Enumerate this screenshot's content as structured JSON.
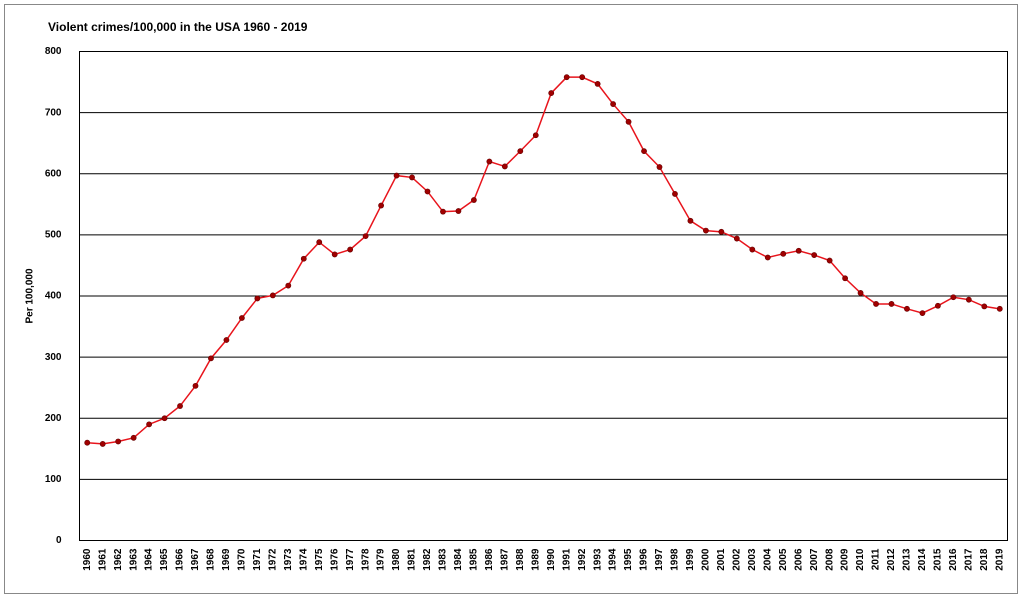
{
  "chart_data": {
    "type": "line",
    "title": "Violent crimes/100,000 in the USA 1960 - 2019",
    "y_label": "Per 100,000",
    "categories": [
      "1960",
      "1961",
      "1962",
      "1963",
      "1964",
      "1965",
      "1966",
      "1967",
      "1968",
      "1969",
      "1970",
      "1971",
      "1972",
      "1973",
      "1974",
      "1975",
      "1976",
      "1977",
      "1978",
      "1979",
      "1980",
      "1981",
      "1982",
      "1983",
      "1984",
      "1985",
      "1986",
      "1987",
      "1988",
      "1989",
      "1990",
      "1991",
      "1992",
      "1993",
      "1994",
      "1995",
      "1996",
      "1997",
      "1998",
      "1999",
      "2000",
      "2001",
      "2002",
      "2003",
      "2004",
      "2005",
      "2006",
      "2007",
      "2008",
      "2009",
      "2010",
      "2011",
      "2012",
      "2013",
      "2014",
      "2015",
      "2016",
      "2017",
      "2018",
      "2019"
    ],
    "values": [
      160,
      158,
      162,
      168,
      190,
      200,
      220,
      253,
      298,
      328,
      364,
      396,
      401,
      417,
      461,
      488,
      468,
      476,
      498,
      548,
      597,
      594,
      571,
      538,
      539,
      557,
      620,
      612,
      637,
      663,
      732,
      758,
      758,
      747,
      714,
      685,
      637,
      611,
      567,
      523,
      507,
      505,
      494,
      476,
      463,
      469,
      474,
      467,
      458,
      429,
      405,
      387,
      387,
      379,
      372,
      384,
      398,
      394,
      383,
      379
    ],
    "color": "#e8141c",
    "marker_color": "#a00000",
    "ylim": [
      0,
      800
    ],
    "yticks": [
      0,
      100,
      200,
      300,
      400,
      500,
      600,
      700,
      800
    ],
    "grid": true
  }
}
